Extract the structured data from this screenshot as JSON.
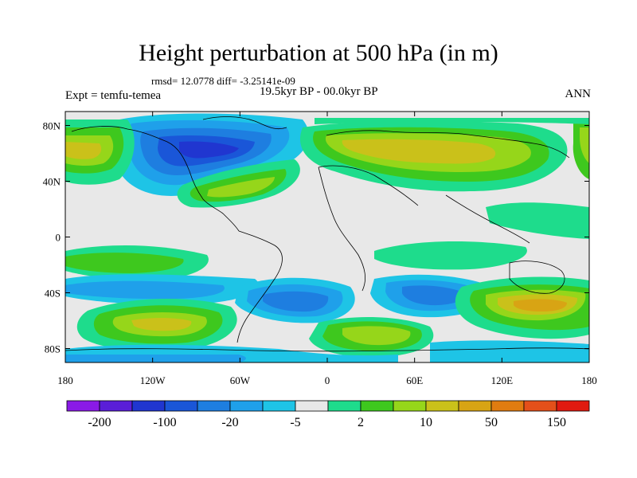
{
  "title": "Height perturbation at 500 hPa (in m)",
  "stats": "rmsd= 12.0778 diff= -3.25141e-09",
  "experiment": "Expt = temfu-temea",
  "period": "19.5kyr BP - 00.0kyr BP",
  "season": "ANN",
  "axes": {
    "x_ticks": [
      "180",
      "120W",
      "60W",
      "0",
      "60E",
      "120E",
      "180"
    ],
    "y_ticks": [
      "80N",
      "40N",
      "0",
      "40S",
      "80S"
    ]
  },
  "colorbar": {
    "colors": [
      "#8a1ae6",
      "#5a1ed8",
      "#2036d0",
      "#1a56d8",
      "#1e7ee0",
      "#1fa0ea",
      "#1ec4e6",
      "#e8e8e8",
      "#1edc8c",
      "#3ec81e",
      "#96d61a",
      "#cac11a",
      "#d8a414",
      "#e07c10",
      "#e4501a",
      "#e01a10"
    ],
    "labels": [
      "-200",
      "-100",
      "-20",
      "-5",
      "2",
      "10",
      "50",
      "150"
    ]
  }
}
